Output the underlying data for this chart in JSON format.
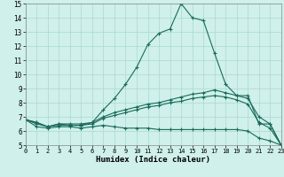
{
  "title": "",
  "xlabel": "Humidex (Indice chaleur)",
  "xlim": [
    0,
    23
  ],
  "ylim": [
    5,
    15
  ],
  "xticks": [
    0,
    1,
    2,
    3,
    4,
    5,
    6,
    7,
    8,
    9,
    10,
    11,
    12,
    13,
    14,
    15,
    16,
    17,
    18,
    19,
    20,
    21,
    22,
    23
  ],
  "yticks": [
    5,
    6,
    7,
    8,
    9,
    10,
    11,
    12,
    13,
    14,
    15
  ],
  "background_color": "#cff0eb",
  "grid_color": "#aad8d0",
  "line_color": "#1a6b5a",
  "series": {
    "max": [
      6.8,
      6.6,
      6.3,
      6.5,
      6.5,
      6.5,
      6.6,
      7.5,
      8.3,
      9.3,
      10.5,
      12.1,
      12.9,
      13.2,
      15.0,
      14.0,
      13.8,
      11.5,
      9.3,
      8.5,
      8.5,
      6.5,
      6.5,
      5.0
    ],
    "mean": [
      6.8,
      6.6,
      6.3,
      6.5,
      6.4,
      6.4,
      6.6,
      7.0,
      7.3,
      7.5,
      7.7,
      7.9,
      8.0,
      8.2,
      8.4,
      8.6,
      8.7,
      8.9,
      8.7,
      8.5,
      8.3,
      7.0,
      6.5,
      5.0
    ],
    "p75": [
      6.8,
      6.5,
      6.3,
      6.4,
      6.4,
      6.4,
      6.5,
      6.9,
      7.1,
      7.3,
      7.5,
      7.7,
      7.8,
      8.0,
      8.1,
      8.3,
      8.4,
      8.5,
      8.4,
      8.2,
      7.9,
      6.6,
      6.2,
      5.0
    ],
    "min": [
      6.8,
      6.3,
      6.2,
      6.3,
      6.3,
      6.2,
      6.3,
      6.4,
      6.3,
      6.2,
      6.2,
      6.2,
      6.1,
      6.1,
      6.1,
      6.1,
      6.1,
      6.1,
      6.1,
      6.1,
      6.0,
      5.5,
      5.3,
      5.0
    ]
  }
}
